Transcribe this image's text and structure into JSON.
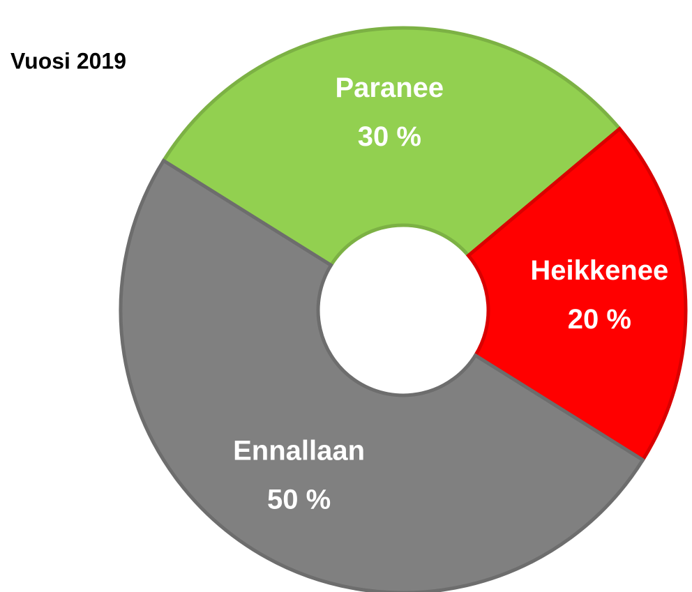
{
  "chart_data": {
    "type": "donut",
    "title": "Vuosi 2019",
    "categories": [
      "Paranee",
      "Heikkenee",
      "Ennallaan"
    ],
    "values": [
      30,
      20,
      50
    ],
    "value_labels": [
      "30 %",
      "20 %",
      "50 %"
    ],
    "colors": [
      "#92d050",
      "#ff0000",
      "#808080"
    ]
  }
}
